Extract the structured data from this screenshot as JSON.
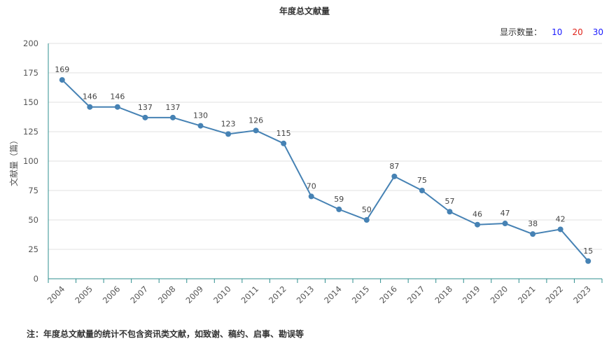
{
  "title": "年度总文献量",
  "display_count": {
    "label": "显示数量：",
    "options": [
      {
        "label": "10",
        "color": "#1a1aff"
      },
      {
        "label": "20",
        "color": "#e0241b"
      },
      {
        "label": "30",
        "color": "#1a1aff"
      }
    ]
  },
  "footnote": "注：年度总文献量的统计不包含资讯类文献，如致谢、稿约、启事、勘误等",
  "chart_data": {
    "type": "line",
    "ylabel": "文献量（篇）",
    "ylim": [
      0,
      200
    ],
    "yticks": [
      0,
      25,
      50,
      75,
      100,
      125,
      150,
      175,
      200
    ],
    "grid": true,
    "line_color": "#4682b4",
    "axis_color": "#2f8f8f",
    "categories": [
      "2004",
      "2005",
      "2006",
      "2007",
      "2008",
      "2009",
      "2010",
      "2011",
      "2012",
      "2013",
      "2014",
      "2015",
      "2016",
      "2017",
      "2018",
      "2019",
      "2020",
      "2021",
      "2022",
      "2023"
    ],
    "values": [
      169,
      146,
      146,
      137,
      137,
      130,
      123,
      126,
      115,
      70,
      59,
      50,
      87,
      75,
      57,
      46,
      47,
      38,
      42,
      15
    ]
  }
}
